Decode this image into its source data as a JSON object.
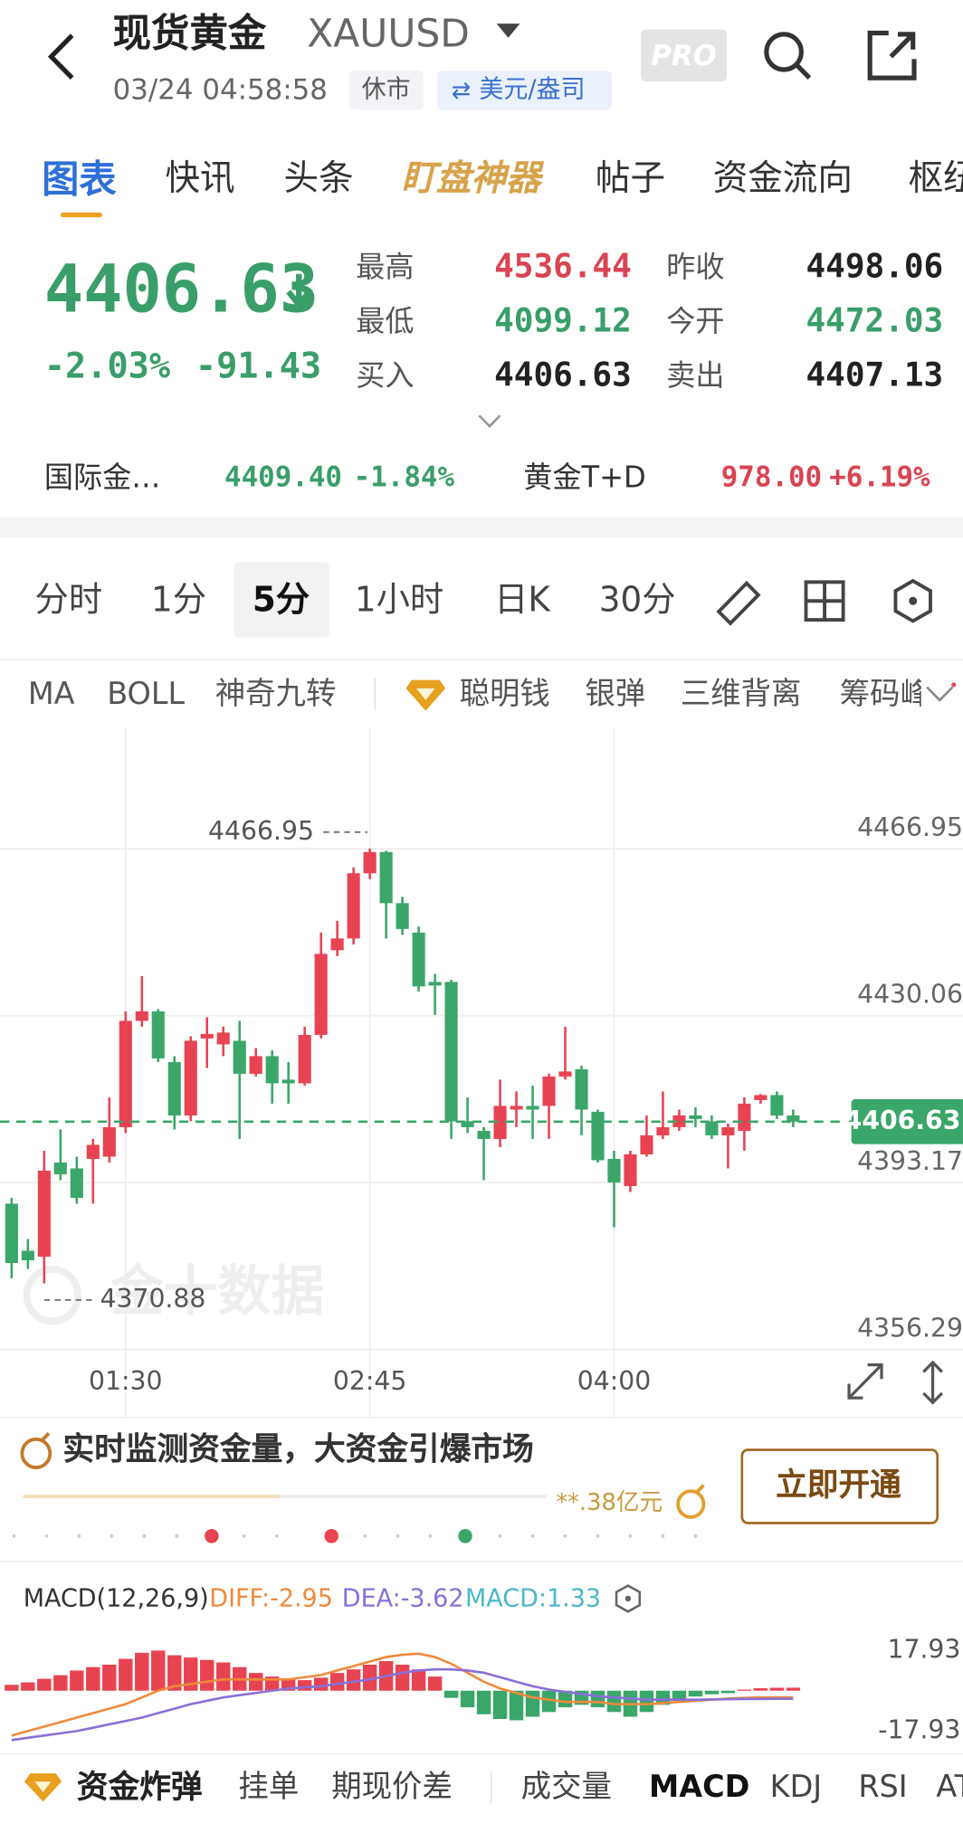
{
  "header": {
    "title": "现货黄金",
    "symbol": "XAUUSD",
    "datetime": "03/24 04:58:58",
    "status": "休市",
    "currency": "美元/盎司",
    "badge": "PRO"
  },
  "tabs": [
    "图表",
    "快讯",
    "头条",
    "盯盘神器",
    "帖子",
    "资金流向",
    "枢纽"
  ],
  "quote": {
    "price": "4406.63",
    "change_pct": "-2.03%",
    "change": "-91.43",
    "stats": [
      {
        "label": "最高",
        "value": "4536.44"
      },
      {
        "label": "最低",
        "value": "4099.12"
      },
      {
        "label": "买入",
        "value": "4406.63"
      },
      {
        "label": "昨收",
        "value": "4498.06"
      },
      {
        "label": "今开",
        "value": "4472.03"
      },
      {
        "label": "卖出",
        "value": "4407.13"
      }
    ]
  },
  "related": [
    {
      "name": "国际金…",
      "price": "4409.40",
      "pct": "-1.84%"
    },
    {
      "name": "黄金T+D",
      "price": "978.00",
      "pct": "+6.19%"
    }
  ],
  "periods": [
    "分时",
    "1分",
    "5分",
    "1小时",
    "日K",
    "30分"
  ],
  "indicators": [
    "MA",
    "BOLL",
    "神奇九转",
    "聪明钱",
    "银弹",
    "三维背离",
    "筹码峰"
  ],
  "chart_data": {
    "type": "candlestick",
    "categories": [
      null,
      null,
      null,
      null,
      null,
      null,
      null,
      "01:30",
      null,
      null,
      null,
      null,
      null,
      null,
      null,
      null,
      null,
      null,
      null,
      null,
      null,
      null,
      "02:45",
      null,
      null,
      null,
      null,
      null,
      null,
      null,
      null,
      null,
      null,
      null,
      null,
      null,
      null,
      "04:00",
      null,
      null,
      null,
      null,
      null,
      null,
      null,
      null,
      null,
      null,
      null
    ],
    "open": [
      4388.5,
      4378.1,
      4376.8,
      4397.6,
      4396.3,
      4398.4,
      4398.9,
      4405.4,
      4428.9,
      4431.0,
      4419.8,
      4408.0,
      4425.0,
      4423.7,
      4424.5,
      4417.2,
      4421.1,
      4415.9,
      4415.1,
      4425.8,
      4444.5,
      4447.1,
      4461.5,
      4466.2,
      4454.9,
      4448.4,
      4437.5,
      4437.5,
      4406.7,
      4404.6,
      4402.8,
      4409.3,
      4410.1,
      4410.1,
      4416.6,
      4418.2,
      4408.8,
      4398.4,
      4392.4,
      4399.4,
      4403.6,
      4405.4,
      4408.0,
      4406.7,
      4403.6,
      4404.6,
      4411.4,
      4412.5,
      4408.0
    ],
    "close": [
      4375.4,
      4376.0,
      4395.8,
      4395.0,
      4389.8,
      4401.5,
      4405.4,
      4428.9,
      4431.0,
      4420.6,
      4408.0,
      4424.5,
      4426.0,
      4426.3,
      4417.2,
      4421.1,
      4415.1,
      4415.1,
      4425.8,
      4443.7,
      4447.1,
      4461.5,
      4466.2,
      4454.9,
      4449.2,
      4436.5,
      4436.7,
      4406.7,
      4405.4,
      4402.8,
      4410.1,
      4410.1,
      4409.3,
      4416.6,
      4417.7,
      4409.3,
      4398.1,
      4393.2,
      4399.4,
      4403.6,
      4405.4,
      4408.0,
      4407.2,
      4403.6,
      4405.4,
      4410.6,
      4412.5,
      4408.0,
      4406.63
    ],
    "high": [
      4389.8,
      4380.7,
      4400.2,
      4404.9,
      4398.9,
      4402.8,
      4412.0,
      4431.0,
      4438.8,
      4431.5,
      4421.1,
      4425.5,
      4429.7,
      4427.6,
      4428.9,
      4422.9,
      4422.4,
      4419.8,
      4427.6,
      4448.4,
      4451.0,
      4462.8,
      4466.95,
      4466.5,
      4456.3,
      4449.7,
      4439.3,
      4438.0,
      4412.0,
      4405.4,
      4415.9,
      4413.3,
      4414.6,
      4417.2,
      4427.6,
      4419.0,
      4409.3,
      4400.2,
      4400.2,
      4408.0,
      4413.3,
      4409.3,
      4409.8,
      4408.0,
      4406.2,
      4412.0,
      4412.7,
      4413.3,
      4409.3
    ],
    "low": [
      4372.0,
      4374.1,
      4370.88,
      4393.7,
      4388.5,
      4388.5,
      4397.6,
      4404.1,
      4427.6,
      4419.8,
      4404.9,
      4406.7,
      4418.5,
      4421.1,
      4402.8,
      4416.6,
      4410.6,
      4410.6,
      4414.6,
      4425.0,
      4443.2,
      4445.8,
      4460.2,
      4447.1,
      4447.9,
      4435.4,
      4430.2,
      4402.8,
      4404.1,
      4393.7,
      4401.0,
      4405.4,
      4402.8,
      4402.8,
      4415.9,
      4403.6,
      4397.6,
      4383.3,
      4391.1,
      4398.9,
      4402.8,
      4404.6,
      4405.4,
      4402.8,
      4396.3,
      4400.2,
      4410.6,
      4407.2,
      4405.4
    ],
    "up_color": "#e84352",
    "down_color": "#3aa66a",
    "ylim": [
      4356.29,
      4493.5
    ],
    "yticks": [
      4466.95,
      4430.06,
      4393.17,
      4356.29
    ],
    "grid": true,
    "last": 4406.63,
    "high_mark": 4466.95,
    "low_mark": 4370.88,
    "watermark": "金十数据"
  },
  "banner": {
    "text": "实时监测资金量，大资金引爆市场",
    "amount": "**.38亿元",
    "button": "立即开通"
  },
  "macd_data": {
    "type": "macd",
    "label": "MACD(12,26,9)",
    "diff_label": "DIFF:-2.95",
    "dea_label": "DEA:-3.62",
    "macd_label": "MACD:1.33",
    "ylim": [
      -27.9,
      30.0
    ],
    "yticks": [
      17.93,
      -17.93
    ],
    "macd": [
      2.6,
      3.7,
      5.3,
      6.9,
      9.0,
      10.5,
      11.6,
      14.2,
      16.9,
      17.9,
      15.8,
      14.8,
      13.7,
      12.6,
      10.5,
      7.9,
      6.3,
      5.3,
      4.7,
      5.8,
      7.9,
      9.5,
      11.6,
      13.2,
      11.6,
      9.5,
      6.3,
      -3.2,
      -7.4,
      -10.5,
      -12.6,
      -13.2,
      -11.6,
      -9.5,
      -7.4,
      -6.3,
      -7.4,
      -9.5,
      -11.6,
      -9.5,
      -6.3,
      -4.2,
      -2.6,
      -1.6,
      -1.1,
      0.5,
      1.1,
      1.3,
      1.33
    ],
    "diff": [
      -20,
      -18,
      -16,
      -14,
      -12,
      -10,
      -8,
      -6,
      -3,
      0,
      2,
      3,
      4,
      5,
      5,
      5,
      5,
      5,
      6,
      7,
      9,
      11,
      13,
      15,
      16,
      16.5,
      15,
      12,
      8,
      4,
      1,
      -1,
      -3,
      -4,
      -5,
      -5,
      -5,
      -6,
      -6,
      -6,
      -5.5,
      -5,
      -4.5,
      -4,
      -3.5,
      -3.2,
      -3,
      -2.95,
      -2.95
    ],
    "dea": [
      -22,
      -21,
      -20,
      -19,
      -18,
      -16.5,
      -15,
      -13.5,
      -12,
      -10,
      -8,
      -6,
      -4.5,
      -3,
      -2,
      -1,
      0,
      1,
      1.5,
      2,
      3,
      4,
      5,
      6.5,
      8,
      9,
      9.5,
      9.5,
      9,
      8,
      6,
      4,
      2,
      0.5,
      -0.5,
      -1.5,
      -2.5,
      -3,
      -3.5,
      -4,
      -4,
      -4,
      -4,
      -3.9,
      -3.8,
      -3.7,
      -3.7,
      -3.62,
      -3.62
    ],
    "diff_color": "#f08a3c",
    "dea_color": "#8a6fd8",
    "macd_color": "#4bb8c8"
  },
  "bottom_tabs": [
    "资金炸弹",
    "挂单",
    "期现价差",
    "成交量",
    "MACD",
    "KDJ",
    "RSI",
    "ATR"
  ]
}
